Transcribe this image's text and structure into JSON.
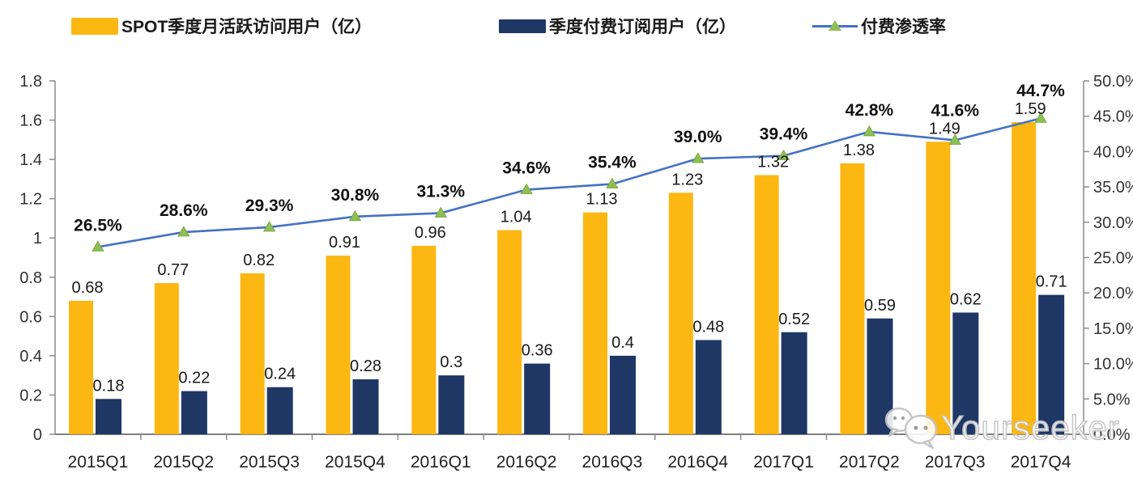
{
  "legend": {
    "items": [
      {
        "label": "SPOT季度月活跃访问用户（亿）",
        "swatch": "bar",
        "color": "#FCB712"
      },
      {
        "label": "季度付费订阅用户（亿）",
        "swatch": "bar",
        "color": "#1E3765"
      },
      {
        "label": "付费渗透率",
        "swatch": "line-triangle",
        "color": "#4472C4",
        "marker_color": "#8FBE55"
      }
    ]
  },
  "watermark": {
    "text": "Yourseeker",
    "icon": "wechat-icon"
  },
  "chart_data": {
    "type": "bar",
    "subtype": "grouped-bars-with-line",
    "title": "",
    "categories": [
      "2015Q1",
      "2015Q2",
      "2015Q3",
      "2015Q4",
      "2016Q1",
      "2016Q2",
      "2016Q3",
      "2016Q4",
      "2017Q1",
      "2017Q2",
      "2017Q3",
      "2017Q4"
    ],
    "series": [
      {
        "name": "SPOT季度月活跃访问用户（亿）",
        "kind": "bar",
        "axis": "left",
        "color": "#FCB712",
        "values": [
          0.68,
          0.77,
          0.82,
          0.91,
          0.96,
          1.04,
          1.13,
          1.23,
          1.32,
          1.38,
          1.49,
          1.59
        ],
        "labels": [
          "0.68",
          "0.77",
          "0.82",
          "0.91",
          "0.96",
          "1.04",
          "1.13",
          "1.23",
          "1.32",
          "1.38",
          "1.49",
          "1.59"
        ]
      },
      {
        "name": "季度付费订阅用户（亿）",
        "kind": "bar",
        "axis": "left",
        "color": "#1E3765",
        "values": [
          0.18,
          0.22,
          0.24,
          0.28,
          0.3,
          0.36,
          0.4,
          0.48,
          0.52,
          0.59,
          0.62,
          0.71
        ],
        "labels": [
          "0.18",
          "0.22",
          "0.24",
          "0.28",
          "0.3",
          "0.36",
          "0.4",
          "0.48",
          "0.52",
          "0.59",
          "0.62",
          "0.71"
        ]
      },
      {
        "name": "付费渗透率",
        "kind": "line",
        "axis": "right",
        "color": "#4472C4",
        "marker": "triangle",
        "marker_color": "#8FBE55",
        "values": [
          26.5,
          28.6,
          29.3,
          30.8,
          31.3,
          34.6,
          35.4,
          39.0,
          39.4,
          42.8,
          41.6,
          44.7
        ],
        "labels": [
          "26.5%",
          "28.6%",
          "29.3%",
          "30.8%",
          "31.3%",
          "34.6%",
          "35.4%",
          "39.0%",
          "39.4%",
          "42.8%",
          "41.6%",
          "44.7%"
        ]
      }
    ],
    "left_axis": {
      "min": 0,
      "max": 1.8,
      "step": 0.2,
      "tick_labels": [
        "0",
        "0.2",
        "0.4",
        "0.6",
        "0.8",
        "1",
        "1.2",
        "1.4",
        "1.6",
        "1.8"
      ]
    },
    "right_axis": {
      "min": 0,
      "max": 50,
      "step": 5,
      "tick_labels": [
        "0.0%",
        "5.0%",
        "10.0%",
        "15.0%",
        "20.0%",
        "25.0%",
        "30.0%",
        "35.0%",
        "40.0%",
        "45.0%",
        "50.0%"
      ]
    },
    "grid": false,
    "legend_position": "top"
  }
}
